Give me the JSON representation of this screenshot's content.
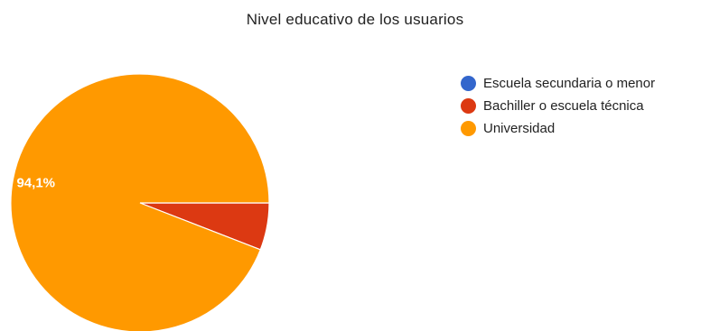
{
  "chart_data": {
    "type": "pie",
    "title": "Nivel educativo de los usuarios",
    "slices": [
      {
        "label": "Escuela secundaria o menor",
        "value": 0,
        "color": "#3366cc",
        "data_label": ""
      },
      {
        "label": "Bachiller o escuela técnica",
        "value": 5.9,
        "color": "#dc3912",
        "data_label": ""
      },
      {
        "label": "Universidad",
        "value": 94.1,
        "color": "#ff9900",
        "data_label": "94,1%"
      }
    ],
    "legend_position": "right"
  }
}
